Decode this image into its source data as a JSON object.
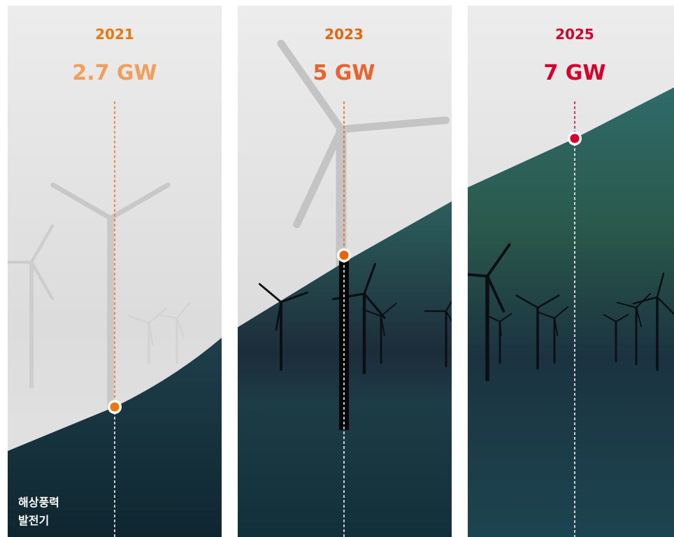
{
  "panels": [
    {
      "year": "2021",
      "capacity": "2.7 GW"
    },
    {
      "year": "2023",
      "capacity": "5 GW"
    },
    {
      "year": "2025",
      "capacity": "7 GW"
    }
  ],
  "caption": [
    "해상풍력",
    "발전기"
  ]
}
